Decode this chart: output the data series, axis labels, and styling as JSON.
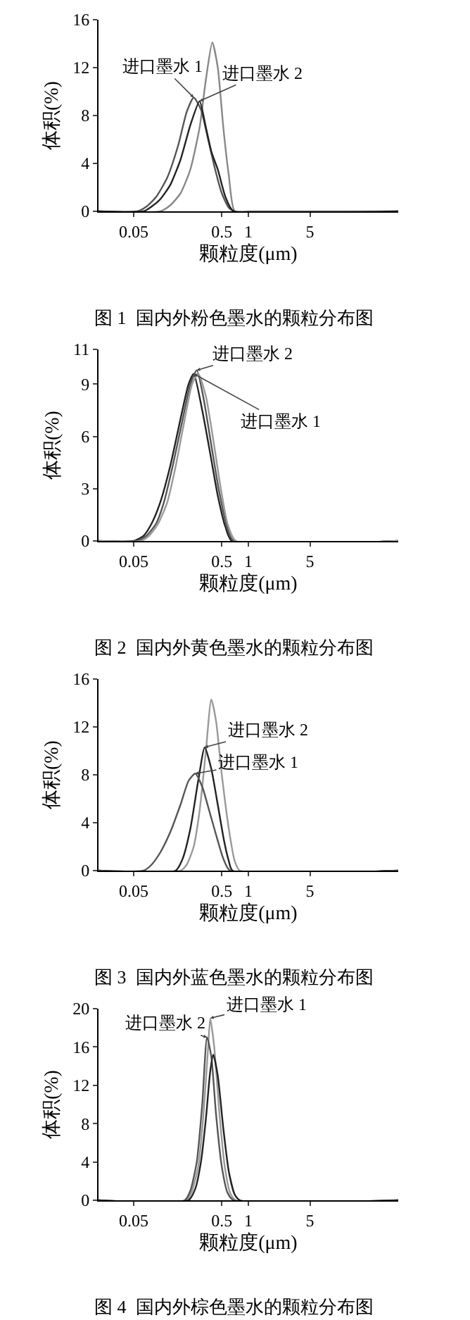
{
  "chart_data": [
    {
      "type": "line",
      "title": "图 1  国内外粉色墨水的颗粒分布图",
      "xlabel": "颗粒度(μm)",
      "ylabel": "体积(%)",
      "log": "x",
      "xlim": [
        0.02,
        50
      ],
      "xticks": [
        0.05,
        0.5,
        1,
        5
      ],
      "ylim": [
        0,
        16
      ],
      "yticks": [
        0,
        4,
        8,
        12,
        16
      ],
      "series": [
        {
          "color": "#888888",
          "x": [
            0.02,
            0.1,
            0.13,
            0.17,
            0.22,
            0.28,
            0.33,
            0.39,
            0.45,
            0.52,
            0.6,
            0.7,
            1,
            50
          ],
          "values": [
            0,
            0,
            0.5,
            1.5,
            3.5,
            7,
            11,
            14.1,
            12,
            7,
            3,
            0,
            0,
            0
          ]
        },
        {
          "name": "进口墨水 1",
          "color": "#555555",
          "x": [
            0.02,
            0.055,
            0.07,
            0.09,
            0.12,
            0.16,
            0.2,
            0.24,
            0.29,
            0.35,
            0.42,
            0.5,
            0.6,
            0.7,
            50
          ],
          "values": [
            0,
            0,
            0.4,
            1.2,
            2.8,
            5.5,
            8.3,
            9.5,
            8.5,
            6,
            3.5,
            1.5,
            0.3,
            0,
            0
          ]
        },
        {
          "name": "进口墨水 2",
          "color": "#222222",
          "x": [
            0.02,
            0.065,
            0.08,
            0.1,
            0.13,
            0.17,
            0.22,
            0.28,
            0.33,
            0.38,
            0.45,
            0.55,
            0.68,
            50
          ],
          "values": [
            0,
            0,
            0.4,
            1,
            2.2,
            4.3,
            7.2,
            9.2,
            7,
            5,
            3.5,
            1.2,
            0,
            0
          ]
        }
      ]
    },
    {
      "type": "line",
      "title": "图 2  国内外黄色墨水的颗粒分布图",
      "xlabel": "颗粒度(μm)",
      "ylabel": "体积(%)",
      "log": "x",
      "xlim": [
        0.02,
        50
      ],
      "xticks": [
        0.05,
        0.5,
        1,
        5
      ],
      "ylim": [
        0,
        11
      ],
      "yticks": [
        0,
        3,
        6,
        9,
        11
      ],
      "series": [
        {
          "name": "进口墨水 1",
          "color": "#222222",
          "x": [
            0.02,
            0.05,
            0.065,
            0.08,
            0.1,
            0.13,
            0.17,
            0.21,
            0.24,
            0.3,
            0.37,
            0.45,
            0.55,
            0.65,
            50
          ],
          "values": [
            0,
            0,
            0.3,
            1,
            2.2,
            4.3,
            7,
            9,
            9.6,
            7.5,
            5,
            2.6,
            0.8,
            0,
            0
          ]
        },
        {
          "name": "进口墨水 2",
          "color": "#555555",
          "x": [
            0.02,
            0.055,
            0.07,
            0.09,
            0.11,
            0.14,
            0.18,
            0.22,
            0.26,
            0.31,
            0.38,
            0.46,
            0.56,
            0.68,
            50
          ],
          "values": [
            0,
            0,
            0.3,
            1,
            2.2,
            4.4,
            7,
            9,
            9.8,
            8.2,
            5.5,
            3,
            1,
            0,
            0
          ]
        },
        {
          "color": "#999999",
          "x": [
            0.02,
            0.06,
            0.075,
            0.095,
            0.12,
            0.15,
            0.19,
            0.23,
            0.27,
            0.33,
            0.4,
            0.48,
            0.58,
            0.72,
            50
          ],
          "values": [
            0,
            0,
            0.3,
            1,
            2.2,
            4.3,
            7,
            9,
            9.6,
            8.3,
            5.8,
            3.2,
            1,
            0,
            0
          ]
        }
      ]
    },
    {
      "type": "line",
      "title": "图 3  国内外蓝色墨水的颗粒分布图",
      "xlabel": "颗粒度(μm)",
      "ylabel": "体积(%)",
      "log": "x",
      "xlim": [
        0.02,
        50
      ],
      "xticks": [
        0.05,
        0.5,
        1,
        5
      ],
      "ylim": [
        0,
        16
      ],
      "yticks": [
        0,
        4,
        8,
        12,
        16
      ],
      "series": [
        {
          "color": "#999999",
          "x": [
            0.02,
            0.17,
            0.2,
            0.24,
            0.28,
            0.33,
            0.38,
            0.43,
            0.5,
            0.6,
            0.7,
            0.8,
            50
          ],
          "values": [
            0,
            0,
            0.5,
            2,
            5,
            10,
            14.3,
            12.5,
            8,
            3.5,
            0.8,
            0,
            0
          ]
        },
        {
          "name": "进口墨水 2",
          "color": "#222222",
          "x": [
            0.02,
            0.15,
            0.18,
            0.22,
            0.27,
            0.32,
            0.38,
            0.45,
            0.53,
            0.6,
            0.66,
            50
          ],
          "values": [
            0,
            0,
            1,
            3.5,
            7.5,
            10.3,
            8.5,
            5.5,
            2.5,
            0.8,
            0,
            0
          ]
        },
        {
          "name": "进口墨水 1",
          "color": "#555555",
          "x": [
            0.02,
            0.065,
            0.08,
            0.1,
            0.13,
            0.17,
            0.21,
            0.25,
            0.3,
            0.36,
            0.43,
            0.52,
            0.62,
            50
          ],
          "values": [
            0,
            0,
            0.5,
            1.5,
            3.2,
            5.5,
            7.5,
            8.1,
            7,
            5,
            3,
            1,
            0,
            0
          ]
        }
      ]
    },
    {
      "type": "line",
      "title": "图 4  国内外棕色墨水的颗粒分布图",
      "xlabel": "颗粒度(μm)",
      "ylabel": "体积(%)",
      "log": "x",
      "xlim": [
        0.02,
        50
      ],
      "xticks": [
        0.05,
        0.5,
        1,
        5
      ],
      "ylim": [
        0,
        20
      ],
      "yticks": [
        0,
        4,
        8,
        12,
        16,
        20
      ],
      "series": [
        {
          "name": "进口墨水 1",
          "color": "#999999",
          "x": [
            0.02,
            0.2,
            0.23,
            0.27,
            0.31,
            0.35,
            0.37,
            0.41,
            0.47,
            0.54,
            0.62,
            0.72,
            50
          ],
          "values": [
            0,
            0,
            1,
            3.5,
            9,
            16,
            19,
            16,
            9,
            3.5,
            0.8,
            0,
            0
          ]
        },
        {
          "name": "进口墨水 2",
          "color": "#555555",
          "x": [
            0.02,
            0.19,
            0.22,
            0.26,
            0.3,
            0.34,
            0.38,
            0.43,
            0.5,
            0.58,
            0.68,
            50
          ],
          "values": [
            0,
            0,
            1,
            4,
            10,
            17,
            15,
            9,
            3.5,
            0.8,
            0,
            0
          ]
        },
        {
          "color": "#222222",
          "x": [
            0.02,
            0.21,
            0.25,
            0.29,
            0.33,
            0.37,
            0.4,
            0.45,
            0.52,
            0.6,
            0.7,
            0.8,
            50
          ],
          "values": [
            0,
            0,
            1.2,
            4,
            8.5,
            13.5,
            15.2,
            13,
            7.5,
            3,
            0.6,
            0,
            0
          ]
        }
      ]
    }
  ]
}
